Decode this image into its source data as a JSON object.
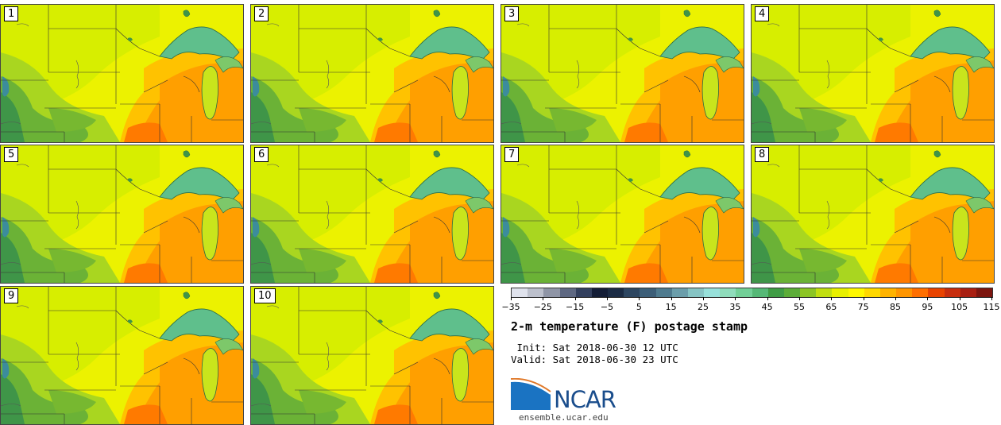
{
  "panels": [
    {
      "label": "1"
    },
    {
      "label": "2"
    },
    {
      "label": "3"
    },
    {
      "label": "4"
    },
    {
      "label": "5"
    },
    {
      "label": "6"
    },
    {
      "label": "7"
    },
    {
      "label": "8"
    },
    {
      "label": "9"
    },
    {
      "label": "10"
    }
  ],
  "colorbar": {
    "colors": [
      "#dfe2ec",
      "#bcc0cc",
      "#8f95a6",
      "#5e6882",
      "#33405e",
      "#131d36",
      "#1b2b44",
      "#2d4661",
      "#3c5e78",
      "#4f7b8f",
      "#6b9eab",
      "#86c4c4",
      "#97e0da",
      "#8fdcbb",
      "#72cf97",
      "#55b876",
      "#3f9c45",
      "#5cad38",
      "#8cc524",
      "#c1de10",
      "#e8f000",
      "#fff700",
      "#ffd800",
      "#ffb300",
      "#ff9500",
      "#ff6f00",
      "#e84300",
      "#c72d0e",
      "#a81f12",
      "#7c150f"
    ],
    "ticks": [
      "−35",
      "−25",
      "−15",
      "−5",
      "5",
      "15",
      "25",
      "35",
      "45",
      "55",
      "65",
      "75",
      "85",
      "95",
      "105",
      "115"
    ]
  },
  "title": "2-m temperature (F) postage stamp",
  "init": " Init: Sat 2018-06-30 12 UTC",
  "valid": "Valid: Sat 2018-06-30 23 UTC",
  "logo_text": "NCAR",
  "site": "ensemble.ucar.edu"
}
